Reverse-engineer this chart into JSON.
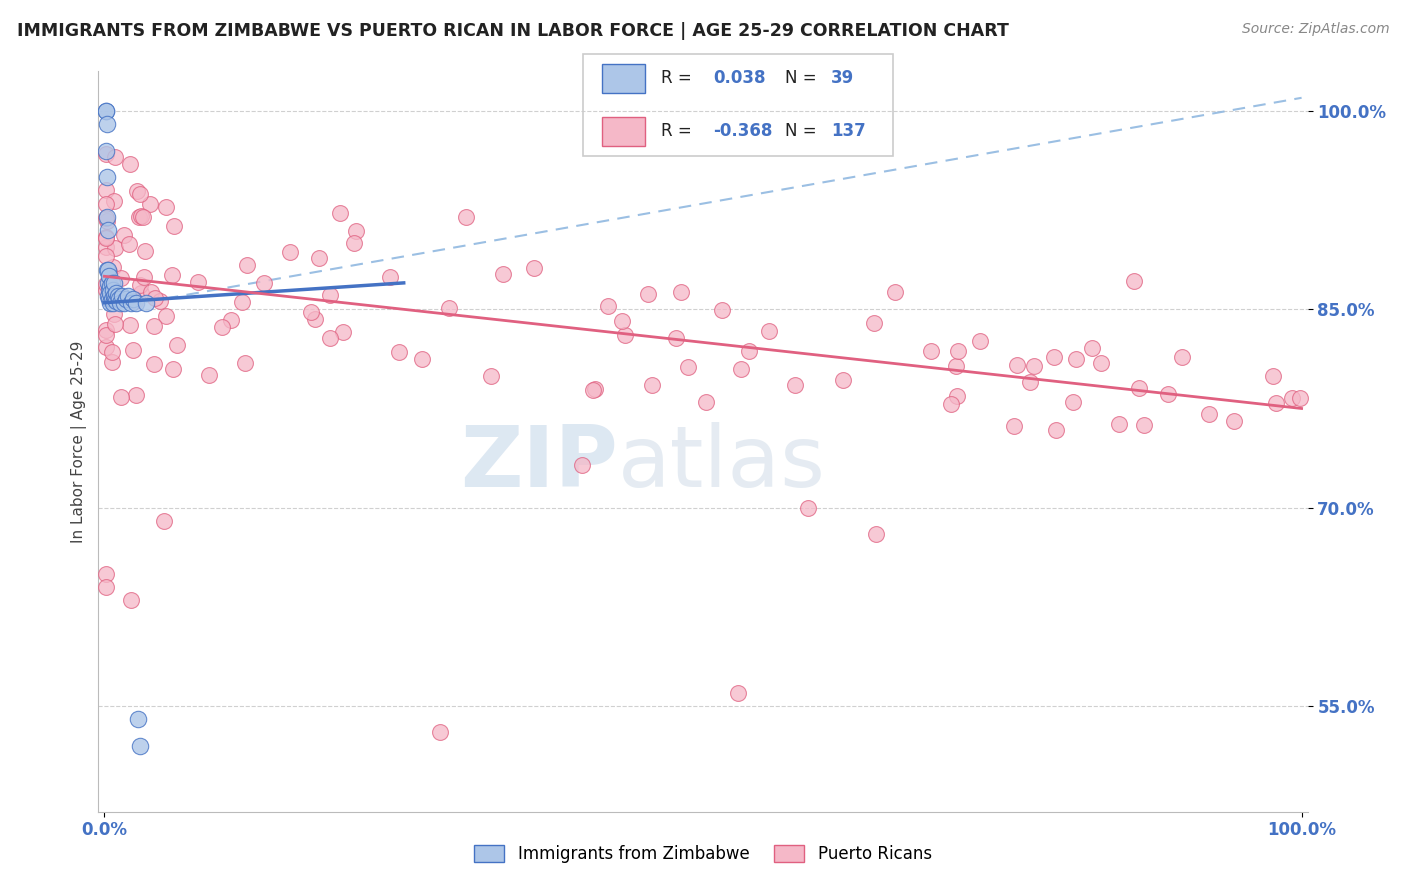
{
  "title": "IMMIGRANTS FROM ZIMBABWE VS PUERTO RICAN IN LABOR FORCE | AGE 25-29 CORRELATION CHART",
  "source": "Source: ZipAtlas.com",
  "ylabel": "In Labor Force | Age 25-29",
  "xlim": [
    -0.005,
    1.005
  ],
  "ylim": [
    0.47,
    1.03
  ],
  "yticks": [
    0.55,
    0.7,
    0.85,
    1.0
  ],
  "ytick_labels": [
    "55.0%",
    "70.0%",
    "85.0%",
    "100.0%"
  ],
  "xtick_labels": [
    "0.0%",
    "100.0%"
  ],
  "color_blue": "#adc6e8",
  "color_pink": "#f5b8c8",
  "line_blue": "#4472c4",
  "line_pink": "#e06080",
  "line_dashed_color": "#90b8e0",
  "background": "#ffffff",
  "grid_color": "#d0d0d0",
  "tick_color": "#4472c4",
  "legend_text_color": "#333333",
  "legend_val_color": "#4472c4",
  "legend_pink_val_color": "#e06080",
  "title_color": "#222222",
  "source_color": "#888888"
}
